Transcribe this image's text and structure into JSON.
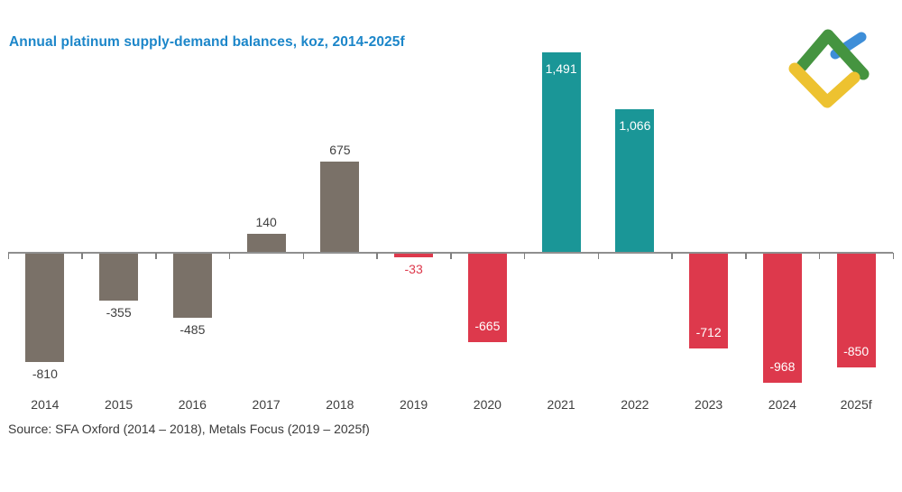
{
  "title": "Annual platinum supply-demand balances, koz, 2014-2025f",
  "source": "Source: SFA Oxford (2014 – 2018), Metals Focus (2019 – 2025f)",
  "logo": {
    "name": "litefinance-logo",
    "green": "#459440",
    "yellow": "#edc230",
    "blue": "#3e8ed8"
  },
  "colors": {
    "title": "#1c86c9",
    "neutral_bar": "#7a7168",
    "surplus_bar": "#1a9697",
    "deficit_bar": "#dd394c",
    "axis": "#8f8f8f",
    "label_dark": "#3f3f3f",
    "label_white": "#ffffff"
  },
  "chart_data": {
    "type": "bar",
    "title": "Annual platinum supply-demand balances, koz, 2014-2025f",
    "xlabel": "",
    "ylabel": "koz",
    "ylim": [
      -1100,
      1550
    ],
    "grid": false,
    "legend": "none",
    "categories": [
      "2014",
      "2015",
      "2016",
      "2017",
      "2018",
      "2019",
      "2020",
      "2021",
      "2022",
      "2023",
      "2024",
      "2025f"
    ],
    "values": [
      -810,
      -355,
      -485,
      140,
      675,
      -33,
      -665,
      1491,
      1066,
      -712,
      -968,
      -850
    ],
    "data_labels": [
      "-810",
      "-355",
      "-485",
      "140",
      "675",
      "-33",
      "-665",
      "1,491",
      "1,066",
      "-712",
      "-968",
      "-850"
    ],
    "bar_color_keys": [
      "neutral",
      "neutral",
      "neutral",
      "neutral",
      "neutral",
      "deficit",
      "deficit",
      "surplus",
      "surplus",
      "deficit",
      "deficit",
      "deficit"
    ],
    "label_placements": [
      "below",
      "below",
      "below",
      "above",
      "above",
      "below",
      "inside-bottom",
      "inside-top",
      "inside-top",
      "inside-bottom",
      "inside-bottom",
      "inside-bottom"
    ],
    "label_color_keys": [
      "dark",
      "dark",
      "dark",
      "dark",
      "dark",
      "red",
      "white",
      "white",
      "white",
      "white",
      "white",
      "white"
    ]
  }
}
